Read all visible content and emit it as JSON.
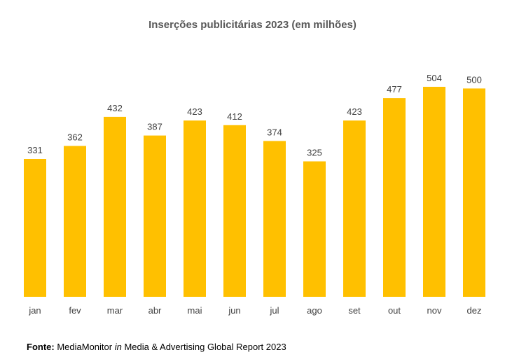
{
  "chart_data": {
    "type": "bar",
    "title": "Inserções publicitárias 2023 (em milhões)",
    "categories": [
      "jan",
      "fev",
      "mar",
      "abr",
      "mai",
      "jun",
      "jul",
      "ago",
      "set",
      "out",
      "nov",
      "dez"
    ],
    "values": [
      331,
      362,
      432,
      387,
      423,
      412,
      374,
      325,
      423,
      477,
      504,
      500
    ],
    "xlabel": "",
    "ylabel": "",
    "ylim": [
      0,
      504
    ],
    "grid": false,
    "legend": "none",
    "bar_color": "#FFC000",
    "label_color": "#404040"
  },
  "source": {
    "prefix": "Fonte:",
    "main": " MediaMonitor ",
    "in_word": "in",
    "rest": " Media & Advertising Global Report 2023"
  }
}
